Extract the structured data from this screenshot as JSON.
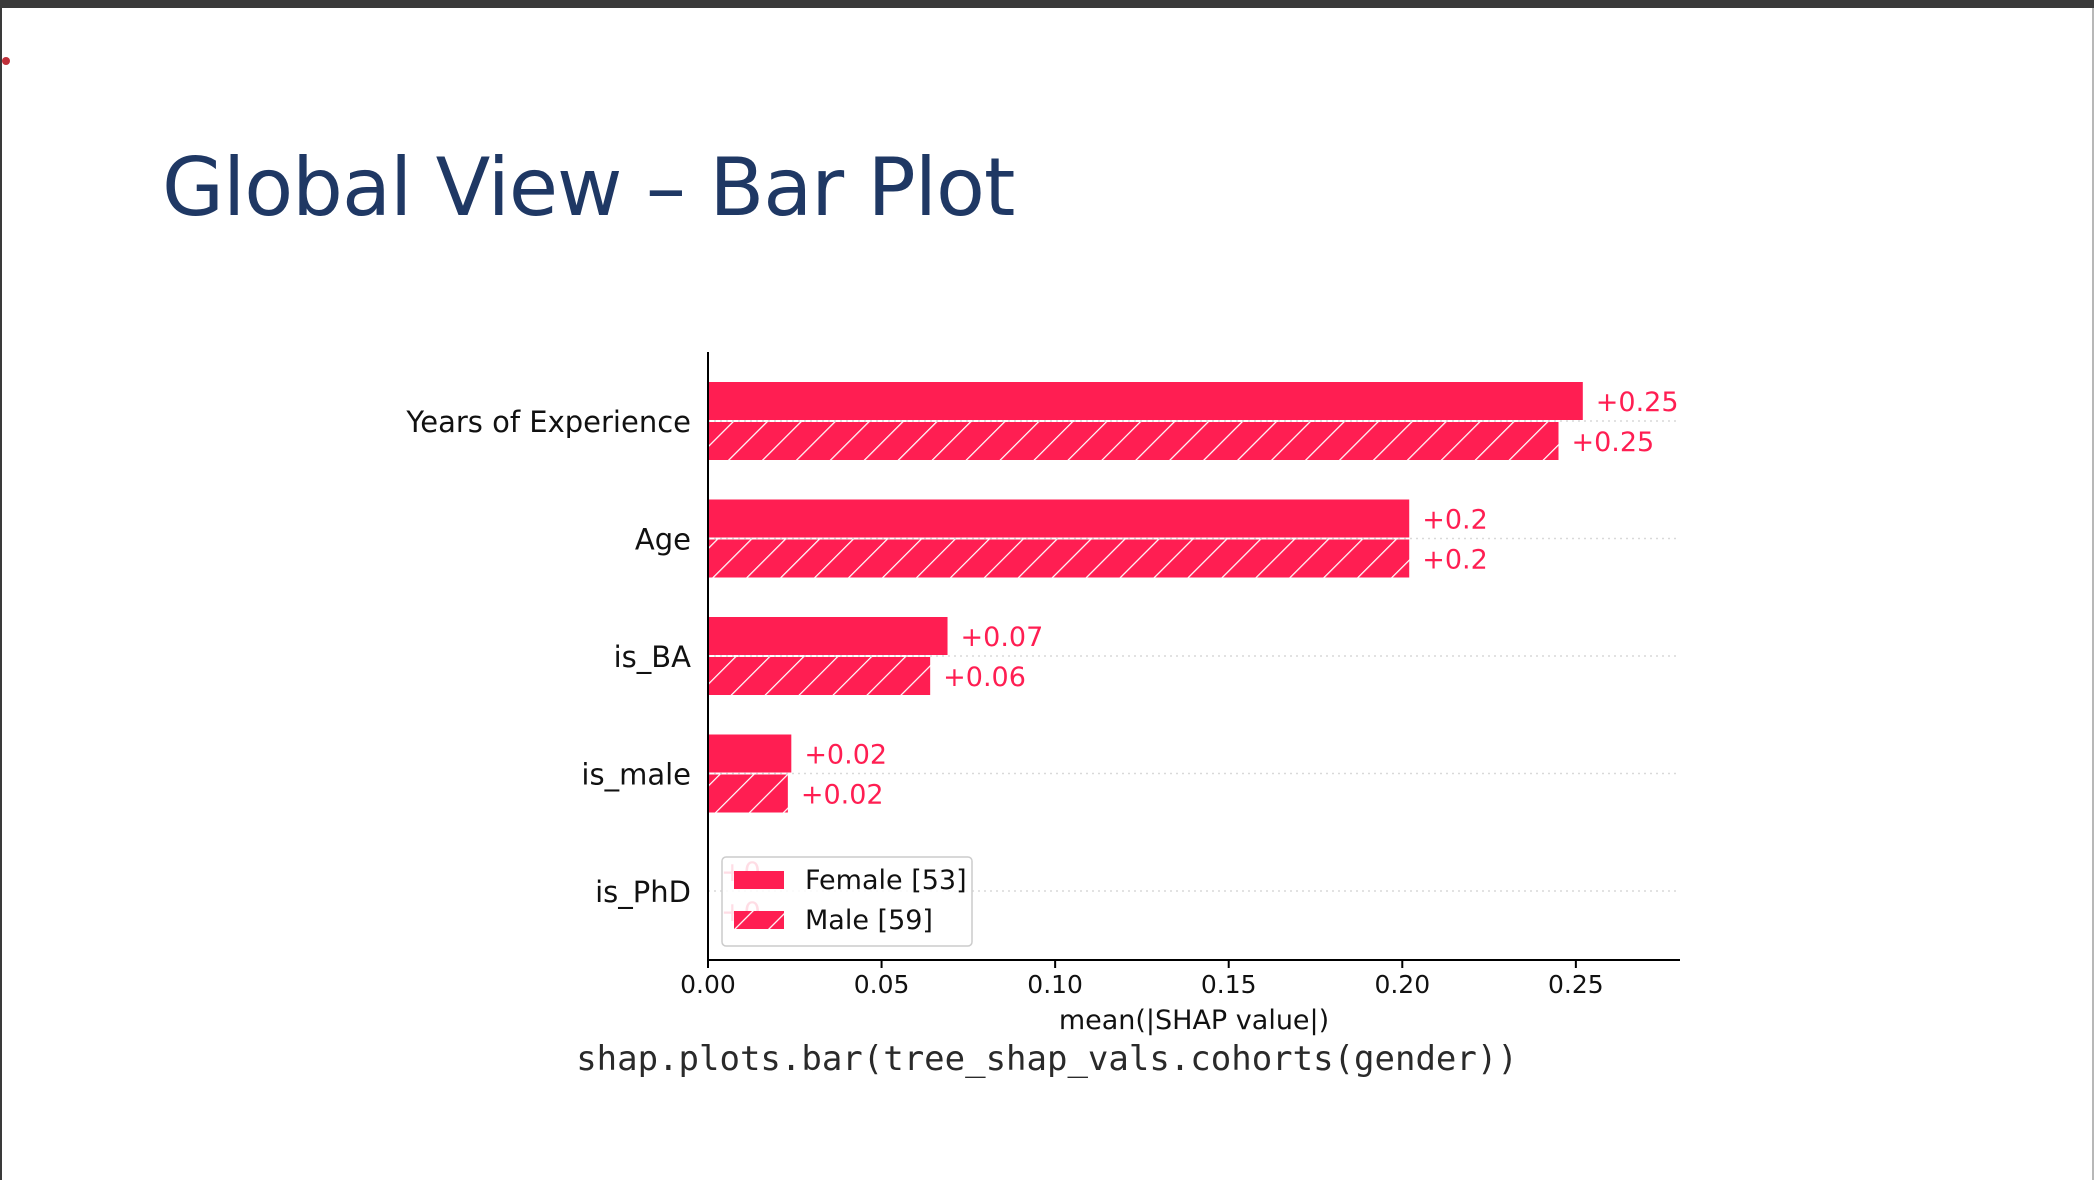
{
  "slide": {
    "title": "Global View – Bar Plot",
    "code_caption": "shap.plots.bar(tree_shap_vals.cohorts(gender))"
  },
  "colors": {
    "title": "#1f3864",
    "bar": "#ff1e52",
    "bar_label": "#ff1e52",
    "grid": "#d9d9d9",
    "axis": "#000000"
  },
  "chart_data": {
    "type": "bar",
    "orientation": "horizontal",
    "title": "",
    "xlabel": "mean(|SHAP value|)",
    "ylabel": "",
    "xlim": [
      0,
      0.28
    ],
    "xticks": [
      0.0,
      0.05,
      0.1,
      0.15,
      0.2,
      0.25
    ],
    "xtick_labels": [
      "0.00",
      "0.05",
      "0.10",
      "0.15",
      "0.20",
      "0.25"
    ],
    "categories": [
      "Years of Experience",
      "Age",
      "is_BA",
      "is_male",
      "is_PhD"
    ],
    "series": [
      {
        "name": "Female [53]",
        "pattern": "solid",
        "values": [
          0.252,
          0.202,
          0.069,
          0.024,
          0.0
        ],
        "labels": [
          "+0.25",
          "+0.2",
          "+0.07",
          "+0.02",
          "+0"
        ]
      },
      {
        "name": "Male [59]",
        "pattern": "hatched",
        "values": [
          0.245,
          0.202,
          0.064,
          0.023,
          0.0
        ],
        "labels": [
          "+0.25",
          "+0.2",
          "+0.06",
          "+0.02",
          "+0"
        ]
      }
    ],
    "grid": "dotted horizontal lines at categories",
    "legend_position": "lower-left"
  }
}
